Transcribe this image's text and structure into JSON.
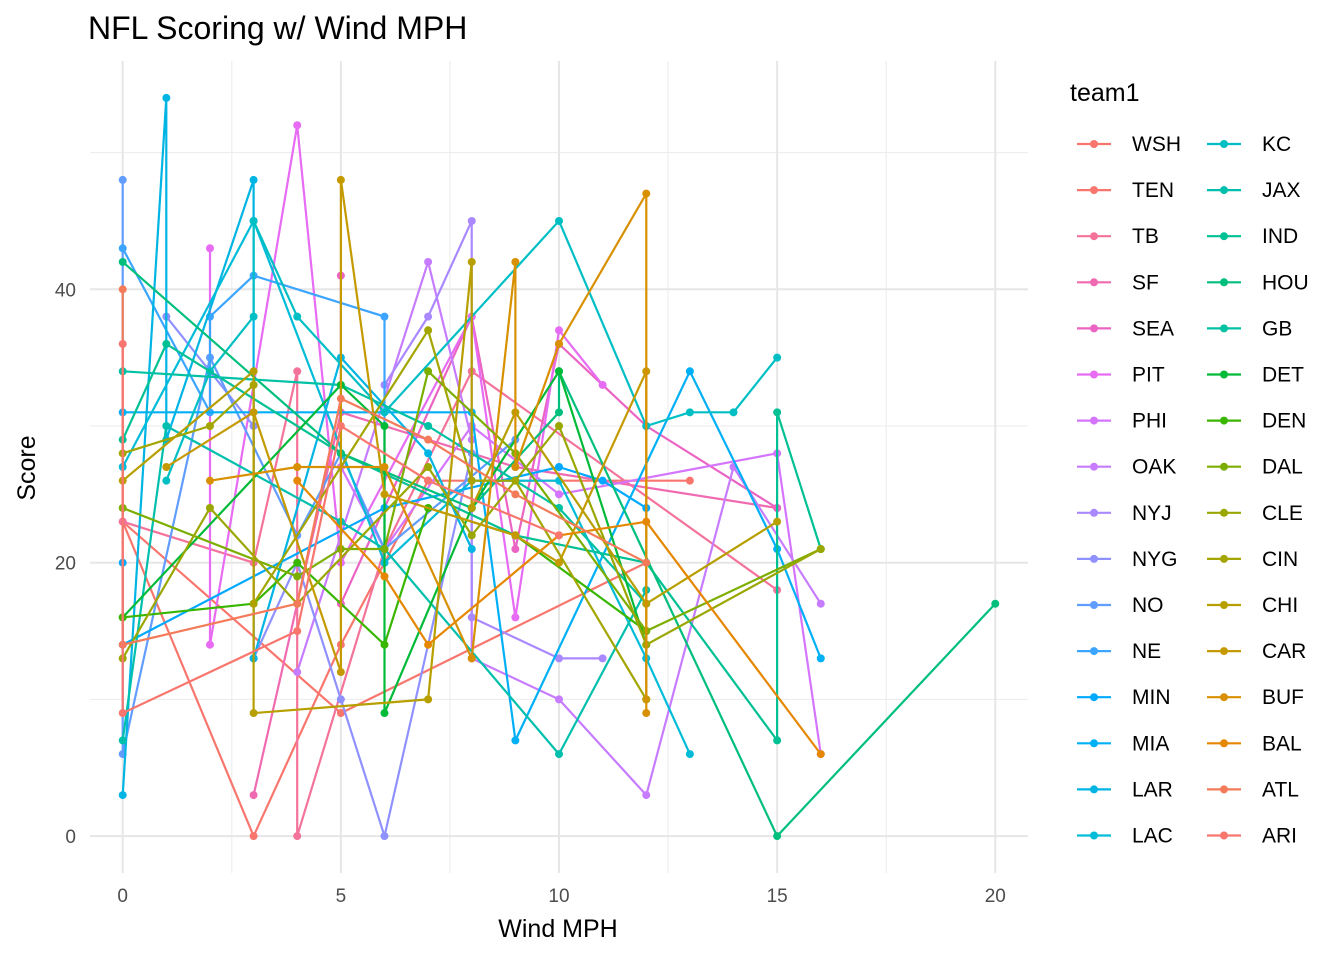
{
  "chart_data": {
    "type": "line",
    "title": "NFL Scoring w/ Wind MPH",
    "xlabel": "Wind MPH",
    "ylabel": "Score",
    "xlim": [
      -0.75,
      20.75
    ],
    "ylim": [
      -2.7,
      56.7
    ],
    "x_ticks": [
      0,
      5,
      10,
      15,
      20
    ],
    "y_ticks": [
      0,
      20,
      40
    ],
    "grid": true,
    "legend": {
      "title": "team1",
      "placement": "right"
    },
    "series": [
      {
        "name": "WSH",
        "color": "#F8766D",
        "points": [
          [
            0,
            23
          ],
          [
            5,
            9
          ],
          [
            12,
            20
          ]
        ]
      },
      {
        "name": "TEN",
        "color": "#F8766D",
        "points": [
          [
            0,
            23
          ],
          [
            3,
            0
          ],
          [
            5,
            14
          ],
          [
            7,
            26
          ],
          [
            13,
            26
          ]
        ]
      },
      {
        "name": "TB",
        "color": "#F4739A",
        "points": [
          [
            0,
            23
          ],
          [
            3,
            20
          ],
          [
            4,
            34
          ],
          [
            4,
            0
          ],
          [
            6,
            21
          ],
          [
            8,
            34
          ],
          [
            15,
            18
          ]
        ]
      },
      {
        "name": "SF",
        "color": "#F06AB1",
        "points": [
          [
            3,
            3
          ],
          [
            5,
            31
          ],
          [
            9,
            27
          ],
          [
            15,
            24
          ]
        ]
      },
      {
        "name": "SEA",
        "color": "#EB63C3",
        "points": [
          [
            5,
            41
          ],
          [
            5,
            17
          ],
          [
            8,
            38
          ],
          [
            9,
            21
          ],
          [
            10,
            36
          ],
          [
            12,
            30
          ],
          [
            15,
            24
          ]
        ]
      },
      {
        "name": "PIT",
        "color": "#E76BF3",
        "points": [
          [
            2,
            43
          ],
          [
            2,
            14
          ],
          [
            4,
            52
          ],
          [
            5,
            20
          ],
          [
            8,
            38
          ],
          [
            9,
            16
          ],
          [
            10,
            37
          ],
          [
            11,
            33
          ]
        ]
      },
      {
        "name": "PHI",
        "color": "#D575FE",
        "points": [
          [
            5,
            27
          ],
          [
            6,
            21
          ],
          [
            8,
            30
          ],
          [
            10,
            25
          ],
          [
            15,
            28
          ],
          [
            16,
            6
          ]
        ]
      },
      {
        "name": "OAK",
        "color": "#C77CFF",
        "points": [
          [
            4,
            12
          ],
          [
            7,
            42
          ],
          [
            8,
            29
          ],
          [
            8,
            13
          ],
          [
            10,
            10
          ],
          [
            12,
            3
          ],
          [
            14,
            27
          ],
          [
            16,
            17
          ]
        ]
      },
      {
        "name": "NYJ",
        "color": "#AA88FF",
        "points": [
          [
            6,
            33
          ],
          [
            7,
            38
          ],
          [
            8,
            45
          ],
          [
            8,
            16
          ],
          [
            10,
            13
          ],
          [
            11,
            13
          ]
        ]
      },
      {
        "name": "NYG",
        "color": "#8F91FF",
        "points": [
          [
            1,
            38
          ],
          [
            3,
            30
          ],
          [
            3,
            13
          ],
          [
            4,
            20
          ],
          [
            5,
            10
          ],
          [
            6,
            0
          ],
          [
            8,
            28
          ]
        ]
      },
      {
        "name": "NO",
        "color": "#619CFF",
        "points": [
          [
            0,
            48
          ],
          [
            0,
            6
          ],
          [
            2,
            35
          ],
          [
            4,
            22
          ],
          [
            5,
            28
          ],
          [
            6,
            21
          ],
          [
            9,
            29
          ]
        ]
      },
      {
        "name": "NE",
        "color": "#3CA5FF",
        "points": [
          [
            0,
            43
          ],
          [
            2,
            31
          ],
          [
            2,
            38
          ],
          [
            3,
            41
          ],
          [
            6,
            38
          ],
          [
            6,
            20
          ]
        ]
      },
      {
        "name": "MIN",
        "color": "#00A9FF",
        "points": [
          [
            0,
            20
          ],
          [
            0,
            14
          ],
          [
            6,
            24
          ],
          [
            10,
            27
          ],
          [
            11,
            26
          ],
          [
            12,
            24
          ]
        ]
      },
      {
        "name": "MIA",
        "color": "#00B0F6",
        "points": [
          [
            0,
            31
          ],
          [
            8,
            31
          ],
          [
            9,
            7
          ],
          [
            13,
            34
          ],
          [
            15,
            21
          ],
          [
            16,
            13
          ]
        ]
      },
      {
        "name": "LAR",
        "color": "#00B4E4",
        "points": [
          [
            0,
            3
          ],
          [
            1,
            54
          ],
          [
            1,
            29
          ],
          [
            3,
            48
          ],
          [
            3,
            13
          ],
          [
            5,
            35
          ],
          [
            7,
            28
          ],
          [
            8,
            21
          ]
        ]
      },
      {
        "name": "LAC",
        "color": "#00BCD8",
        "points": [
          [
            0,
            27
          ],
          [
            3,
            45
          ],
          [
            6,
            20
          ],
          [
            8,
            26
          ],
          [
            10,
            26
          ],
          [
            12,
            13
          ],
          [
            13,
            6
          ]
        ]
      },
      {
        "name": "KC",
        "color": "#00BFC4",
        "points": [
          [
            1,
            26
          ],
          [
            2,
            34
          ],
          [
            3,
            38
          ],
          [
            3,
            45
          ],
          [
            4,
            38
          ],
          [
            6,
            31
          ],
          [
            10,
            45
          ],
          [
            12,
            30
          ],
          [
            13,
            31
          ],
          [
            14,
            31
          ],
          [
            15,
            35
          ]
        ]
      },
      {
        "name": "JAX",
        "color": "#00BFAC",
        "points": [
          [
            0,
            7
          ],
          [
            1,
            30
          ],
          [
            5,
            23
          ],
          [
            6,
            21
          ],
          [
            10,
            6
          ],
          [
            12,
            18
          ]
        ]
      },
      {
        "name": "IND",
        "color": "#00C094",
        "points": [
          [
            0,
            29
          ],
          [
            1,
            36
          ],
          [
            5,
            28
          ],
          [
            9,
            22
          ],
          [
            12,
            20
          ],
          [
            15,
            7
          ],
          [
            15,
            31
          ],
          [
            16,
            21
          ]
        ]
      },
      {
        "name": "HOU",
        "color": "#00BF7D",
        "points": [
          [
            0,
            42
          ],
          [
            5,
            28
          ],
          [
            8,
            24
          ],
          [
            10,
            31
          ],
          [
            10,
            34
          ],
          [
            15,
            0
          ],
          [
            20,
            17
          ]
        ]
      },
      {
        "name": "GB",
        "color": "#00C1A3",
        "points": [
          [
            0,
            34
          ],
          [
            5,
            33
          ],
          [
            7,
            30
          ],
          [
            9,
            26
          ],
          [
            10,
            24
          ],
          [
            12,
            17
          ]
        ]
      },
      {
        "name": "DET",
        "color": "#00BA38",
        "points": [
          [
            0,
            16
          ],
          [
            5,
            33
          ],
          [
            6,
            30
          ],
          [
            6,
            9
          ],
          [
            8,
            24
          ],
          [
            10,
            34
          ],
          [
            12,
            14
          ]
        ]
      },
      {
        "name": "DEN",
        "color": "#39B600",
        "points": [
          [
            0,
            16
          ],
          [
            3,
            17
          ],
          [
            4,
            20
          ],
          [
            6,
            14
          ],
          [
            7,
            24
          ],
          [
            9,
            22
          ],
          [
            12,
            15
          ]
        ]
      },
      {
        "name": "DAL",
        "color": "#7CAE00",
        "points": [
          [
            0,
            24
          ],
          [
            4,
            19
          ],
          [
            5,
            21
          ],
          [
            6,
            21
          ],
          [
            7,
            34
          ],
          [
            9,
            28
          ],
          [
            12,
            15
          ],
          [
            16,
            21
          ]
        ]
      },
      {
        "name": "CLE",
        "color": "#9AA700",
        "points": [
          [
            0,
            13
          ],
          [
            2,
            24
          ],
          [
            4,
            17
          ],
          [
            7,
            27
          ],
          [
            8,
            22
          ],
          [
            10,
            30
          ],
          [
            12,
            14
          ],
          [
            16,
            21
          ]
        ]
      },
      {
        "name": "CIN",
        "color": "#A3A500",
        "points": [
          [
            0,
            28
          ],
          [
            2,
            30
          ],
          [
            3,
            33
          ],
          [
            3,
            17
          ],
          [
            7,
            37
          ],
          [
            8,
            26
          ],
          [
            9,
            26
          ],
          [
            12,
            10
          ]
        ]
      },
      {
        "name": "CHI",
        "color": "#B79F00",
        "points": [
          [
            0,
            26
          ],
          [
            3,
            34
          ],
          [
            3,
            9
          ],
          [
            7,
            10
          ],
          [
            8,
            42
          ],
          [
            8,
            24
          ],
          [
            9,
            31
          ],
          [
            12,
            17
          ],
          [
            15,
            23
          ]
        ]
      },
      {
        "name": "CAR",
        "color": "#C49A00",
        "points": [
          [
            1,
            27
          ],
          [
            3,
            31
          ],
          [
            5,
            12
          ],
          [
            5,
            48
          ],
          [
            6,
            25
          ],
          [
            9,
            22
          ],
          [
            10,
            20
          ],
          [
            12,
            34
          ],
          [
            12,
            10
          ]
        ]
      },
      {
        "name": "BUF",
        "color": "#D89000",
        "points": [
          [
            2,
            26
          ],
          [
            4,
            27
          ],
          [
            6,
            27
          ],
          [
            8,
            13
          ],
          [
            9,
            42
          ],
          [
            9,
            27
          ],
          [
            10,
            36
          ],
          [
            12,
            47
          ],
          [
            12,
            9
          ]
        ]
      },
      {
        "name": "BAL",
        "color": "#E58700",
        "points": [
          [
            4,
            26
          ],
          [
            6,
            19
          ],
          [
            7,
            14
          ],
          [
            10,
            22
          ],
          [
            12,
            23
          ],
          [
            16,
            6
          ]
        ]
      },
      {
        "name": "ATL",
        "color": "#F37B59",
        "points": [
          [
            0,
            40
          ],
          [
            0,
            14
          ],
          [
            4,
            17
          ],
          [
            5,
            32
          ],
          [
            7,
            29
          ],
          [
            9,
            25
          ],
          [
            12,
            20
          ]
        ]
      },
      {
        "name": "ARI",
        "color": "#F8766D",
        "points": [
          [
            0,
            36
          ],
          [
            0,
            9
          ],
          [
            4,
            15
          ],
          [
            5,
            30
          ],
          [
            7,
            26
          ],
          [
            10,
            22
          ]
        ]
      }
    ]
  }
}
